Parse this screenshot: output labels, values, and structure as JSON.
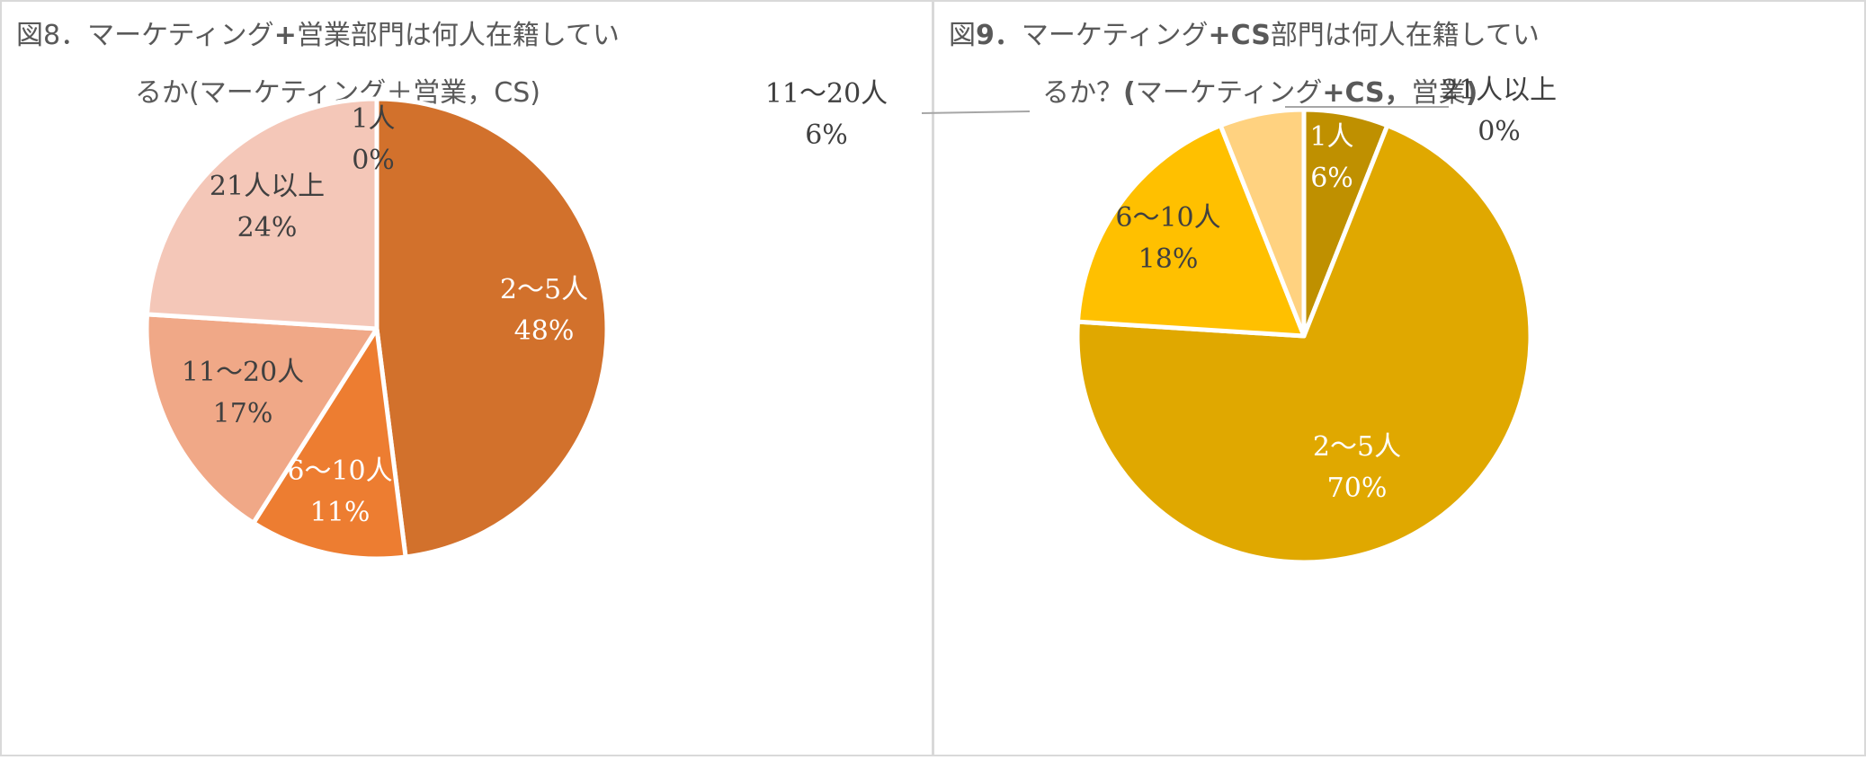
{
  "charts": [
    {
      "title_line1_parts": [
        "図8．マーケティング",
        "+",
        "営業部門は何人在籍してい"
      ],
      "title_line2": "るか(マーケティング＋営業，CS)",
      "chart_data": {
        "type": "pie",
        "start_angle_deg": 0,
        "slices": [
          {
            "label": "2〜5人",
            "value": 48,
            "value_text": "48%",
            "color": "#D2712C",
            "text_color": "#ffffff"
          },
          {
            "label": "6〜10人",
            "value": 11,
            "value_text": "11%",
            "color": "#ED7D31",
            "text_color": "#ffffff"
          },
          {
            "label": "11〜20人",
            "value": 17,
            "value_text": "17%",
            "color": "#F0A887",
            "text_color": "#404040"
          },
          {
            "label": "21人以上",
            "value": 24,
            "value_text": "24%",
            "color": "#F4C7B8",
            "text_color": "#404040"
          },
          {
            "label": "1人",
            "value": 0,
            "value_text": "0%",
            "color": "#F8D6C8",
            "text_color": "#404040"
          }
        ]
      }
    },
    {
      "title_line1_parts": [
        "図",
        "9．",
        "マーケティング",
        "+CS",
        "部門は何人在籍してい"
      ],
      "title_line2_parts": [
        "るか？",
        "(",
        "マーケティング",
        "+CS，",
        "営業",
        ")"
      ],
      "chart_data": {
        "type": "pie",
        "start_angle_deg": 0,
        "slices": [
          {
            "label": "1人",
            "value": 6,
            "value_text": "6%",
            "color": "#BF9000",
            "text_color": "#ffffff"
          },
          {
            "label": "2〜5人",
            "value": 70,
            "value_text": "70%",
            "color": "#E0A800",
            "text_color": "#ffffff"
          },
          {
            "label": "6〜10人",
            "value": 18,
            "value_text": "18%",
            "color": "#FFC000",
            "text_color": "#404040"
          },
          {
            "label": "11〜20人",
            "value": 6,
            "value_text": "6%",
            "color": "#FFD280",
            "text_color": "#404040"
          },
          {
            "label": "21人以上",
            "value": 0,
            "value_text": "0%",
            "color": "#FFE699",
            "text_color": "#404040"
          }
        ]
      }
    }
  ]
}
